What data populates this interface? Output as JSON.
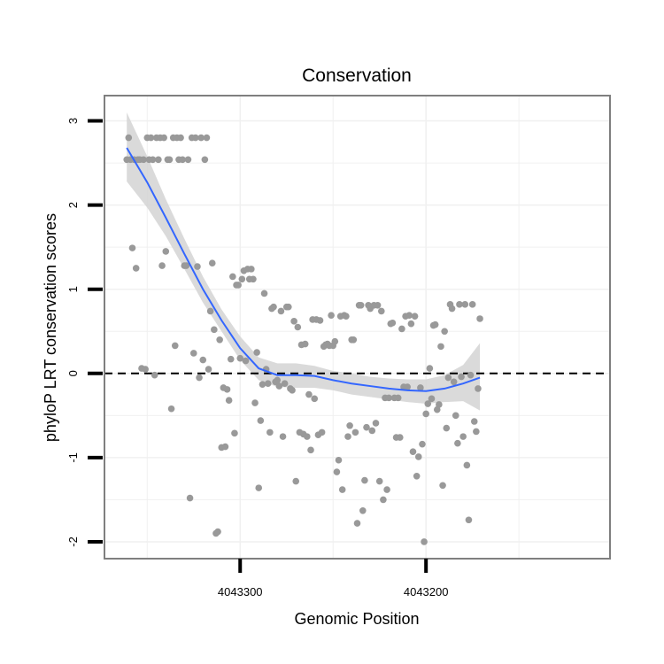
{
  "chart_data": {
    "type": "scatter",
    "title": "Conservation",
    "xlabel": "Genomic Position",
    "ylabel": "phyloP LRT conservation scores",
    "x_reversed": true,
    "xlim": [
      4043373,
      4043101
    ],
    "ylim": [
      -2.2,
      3.3
    ],
    "x_ticks": [
      4043300,
      4043200
    ],
    "x_tick_labels": [
      "4043300",
      "4043200"
    ],
    "y_ticks": [
      -2,
      -1,
      0,
      1,
      2,
      3
    ],
    "y_tick_labels": [
      "-2",
      "-1",
      "0",
      "1",
      "2",
      "3"
    ],
    "reference_line": {
      "y": 0,
      "style": "dashed"
    },
    "grid": true,
    "legend": "none",
    "colors": {
      "points": "#999999",
      "smooth": "#3366FF",
      "band": "#d3d3d3",
      "frame": "#7f7f7f",
      "grid": "#f0f0f0"
    },
    "series": [
      {
        "type": "points",
        "points": [
          [
            4043361,
            2.54
          ],
          [
            4043360,
            2.8
          ],
          [
            4043359,
            2.54
          ],
          [
            4043358,
            1.49
          ],
          [
            4043357,
            2.54
          ],
          [
            4043356,
            1.25
          ],
          [
            4043355,
            2.54
          ],
          [
            4043354,
            2.54
          ],
          [
            4043353,
            0.06
          ],
          [
            4043352,
            2.54
          ],
          [
            4043351,
            0.05
          ],
          [
            4043350,
            2.8
          ],
          [
            4043349,
            2.54
          ],
          [
            4043348,
            2.8
          ],
          [
            4043347,
            2.54
          ],
          [
            4043346,
            -0.02
          ],
          [
            4043345,
            2.8
          ],
          [
            4043344,
            2.54
          ],
          [
            4043343,
            2.8
          ],
          [
            4043342,
            1.28
          ],
          [
            4043341,
            2.8
          ],
          [
            4043340,
            1.45
          ],
          [
            4043339,
            2.54
          ],
          [
            4043338,
            2.54
          ],
          [
            4043337,
            -0.42
          ],
          [
            4043336,
            2.8
          ],
          [
            4043335,
            0.33
          ],
          [
            4043334,
            2.8
          ],
          [
            4043333,
            2.54
          ],
          [
            4043332,
            2.8
          ],
          [
            4043331,
            2.54
          ],
          [
            4043330,
            1.28
          ],
          [
            4043329,
            1.28
          ],
          [
            4043328,
            2.54
          ],
          [
            4043327,
            -1.48
          ],
          [
            4043326,
            2.8
          ],
          [
            4043325,
            0.24
          ],
          [
            4043324,
            2.8
          ],
          [
            4043323,
            1.27
          ],
          [
            4043322,
            -0.05
          ],
          [
            4043321,
            2.8
          ],
          [
            4043320,
            0.16
          ],
          [
            4043319,
            2.54
          ],
          [
            4043318,
            2.8
          ],
          [
            4043317,
            0.05
          ],
          [
            4043316,
            0.74
          ],
          [
            4043315,
            1.31
          ],
          [
            4043314,
            0.52
          ],
          [
            4043313,
            -1.9
          ],
          [
            4043312,
            -1.88
          ],
          [
            4043311,
            0.4
          ],
          [
            4043310,
            -0.88
          ],
          [
            4043309,
            -0.17
          ],
          [
            4043308,
            -0.87
          ],
          [
            4043307,
            -0.19
          ],
          [
            4043306,
            -0.32
          ],
          [
            4043305,
            0.17
          ],
          [
            4043304,
            1.15
          ],
          [
            4043303,
            -0.71
          ],
          [
            4043302,
            1.05
          ],
          [
            4043301,
            1.05
          ],
          [
            4043300,
            0.18
          ],
          [
            4043299,
            1.12
          ],
          [
            4043298,
            1.22
          ],
          [
            4043297,
            0.15
          ],
          [
            4043296,
            1.24
          ],
          [
            4043295,
            1.12
          ],
          [
            4043294,
            1.24
          ],
          [
            4043293,
            1.12
          ],
          [
            4043292,
            -0.35
          ],
          [
            4043291,
            0.25
          ],
          [
            4043290,
            -1.36
          ],
          [
            4043289,
            -0.56
          ],
          [
            4043288,
            -0.13
          ],
          [
            4043287,
            0.95
          ],
          [
            4043286,
            0.05
          ],
          [
            4043285,
            -0.12
          ],
          [
            4043284,
            -0.7
          ],
          [
            4043283,
            0.77
          ],
          [
            4043282,
            0.79
          ],
          [
            4043281,
            -0.1
          ],
          [
            4043280,
            -0.08
          ],
          [
            4043279,
            -0.15
          ],
          [
            4043278,
            0.74
          ],
          [
            4043277,
            -0.75
          ],
          [
            4043276,
            -0.12
          ],
          [
            4043275,
            0.79
          ],
          [
            4043274,
            0.79
          ],
          [
            4043273,
            -0.18
          ],
          [
            4043272,
            -0.2
          ],
          [
            4043271,
            0.62
          ],
          [
            4043270,
            -1.28
          ],
          [
            4043269,
            0.55
          ],
          [
            4043268,
            -0.7
          ],
          [
            4043267,
            0.34
          ],
          [
            4043266,
            -0.72
          ],
          [
            4043265,
            0.35
          ],
          [
            4043264,
            -0.75
          ],
          [
            4043263,
            -0.25
          ],
          [
            4043262,
            -0.91
          ],
          [
            4043261,
            0.64
          ],
          [
            4043260,
            -0.3
          ],
          [
            4043259,
            0.64
          ],
          [
            4043258,
            -0.73
          ],
          [
            4043257,
            0.63
          ],
          [
            4043256,
            -0.7
          ],
          [
            4043255,
            0.32
          ],
          [
            4043254,
            0.34
          ],
          [
            4043253,
            0.35
          ],
          [
            4043252,
            0.33
          ],
          [
            4043251,
            0.69
          ],
          [
            4043250,
            0.33
          ],
          [
            4043249,
            0.38
          ],
          [
            4043248,
            -1.17
          ],
          [
            4043247,
            -1.03
          ],
          [
            4043246,
            0.68
          ],
          [
            4043245,
            -1.38
          ],
          [
            4043244,
            0.69
          ],
          [
            4043243,
            0.68
          ],
          [
            4043242,
            -0.75
          ],
          [
            4043241,
            -0.62
          ],
          [
            4043240,
            0.4
          ],
          [
            4043239,
            0.4
          ],
          [
            4043238,
            -0.7
          ],
          [
            4043237,
            -1.78
          ],
          [
            4043236,
            0.81
          ],
          [
            4043235,
            0.81
          ],
          [
            4043234,
            -1.63
          ],
          [
            4043233,
            -1.27
          ],
          [
            4043232,
            -0.64
          ],
          [
            4043231,
            0.81
          ],
          [
            4043230,
            0.77
          ],
          [
            4043229,
            -0.68
          ],
          [
            4043228,
            0.81
          ],
          [
            4043227,
            -0.59
          ],
          [
            4043226,
            0.81
          ],
          [
            4043225,
            -1.28
          ],
          [
            4043224,
            0.74
          ],
          [
            4043223,
            -1.5
          ],
          [
            4043222,
            -0.29
          ],
          [
            4043221,
            -1.38
          ],
          [
            4043220,
            -0.29
          ],
          [
            4043219,
            0.59
          ],
          [
            4043218,
            0.6
          ],
          [
            4043217,
            -0.29
          ],
          [
            4043216,
            -0.76
          ],
          [
            4043215,
            -0.29
          ],
          [
            4043214,
            -0.76
          ],
          [
            4043213,
            0.53
          ],
          [
            4043212,
            -0.16
          ],
          [
            4043211,
            0.68
          ],
          [
            4043210,
            -0.16
          ],
          [
            4043209,
            0.69
          ],
          [
            4043208,
            0.59
          ],
          [
            4043207,
            -0.93
          ],
          [
            4043206,
            0.68
          ],
          [
            4043205,
            -1.22
          ],
          [
            4043204,
            -0.99
          ],
          [
            4043203,
            -0.17
          ],
          [
            4043202,
            -0.84
          ],
          [
            4043201,
            -2.0
          ],
          [
            4043200,
            -0.48
          ],
          [
            4043199,
            -0.36
          ],
          [
            4043198,
            0.06
          ],
          [
            4043197,
            -0.3
          ],
          [
            4043196,
            0.57
          ],
          [
            4043195,
            0.58
          ],
          [
            4043194,
            -0.43
          ],
          [
            4043193,
            -0.37
          ],
          [
            4043192,
            0.32
          ],
          [
            4043191,
            -1.33
          ],
          [
            4043190,
            0.5
          ],
          [
            4043189,
            -0.65
          ],
          [
            4043188,
            -0.05
          ],
          [
            4043187,
            0.82
          ],
          [
            4043186,
            0.77
          ],
          [
            4043185,
            -0.1
          ],
          [
            4043184,
            -0.5
          ],
          [
            4043183,
            -0.83
          ],
          [
            4043182,
            0.82
          ],
          [
            4043181,
            -0.04
          ],
          [
            4043180,
            -0.75
          ],
          [
            4043179,
            0.82
          ],
          [
            4043178,
            -1.09
          ],
          [
            4043177,
            -1.74
          ],
          [
            4043176,
            -0.02
          ],
          [
            4043175,
            0.82
          ],
          [
            4043174,
            -0.57
          ],
          [
            4043173,
            -0.69
          ],
          [
            4043172,
            -0.18
          ],
          [
            4043171,
            0.65
          ]
        ]
      },
      {
        "type": "smooth",
        "line": [
          [
            4043361,
            2.68
          ],
          [
            4043350,
            2.27
          ],
          [
            4043340,
            1.85
          ],
          [
            4043330,
            1.42
          ],
          [
            4043320,
            1.0
          ],
          [
            4043310,
            0.63
          ],
          [
            4043300,
            0.3
          ],
          [
            4043290,
            0.06
          ],
          [
            4043280,
            -0.02
          ],
          [
            4043270,
            -0.02
          ],
          [
            4043260,
            -0.03
          ],
          [
            4043250,
            -0.08
          ],
          [
            4043240,
            -0.12
          ],
          [
            4043230,
            -0.15
          ],
          [
            4043220,
            -0.18
          ],
          [
            4043210,
            -0.2
          ],
          [
            4043200,
            -0.21
          ],
          [
            4043190,
            -0.18
          ],
          [
            4043180,
            -0.12
          ],
          [
            4043171,
            -0.05
          ]
        ],
        "band_upper": [
          [
            4043361,
            3.1
          ],
          [
            4043350,
            2.58
          ],
          [
            4043340,
            2.07
          ],
          [
            4043330,
            1.6
          ],
          [
            4043320,
            1.15
          ],
          [
            4043310,
            0.76
          ],
          [
            4043300,
            0.44
          ],
          [
            4043290,
            0.19
          ],
          [
            4043280,
            0.12
          ],
          [
            4043270,
            0.12
          ],
          [
            4043260,
            0.09
          ],
          [
            4043250,
            0.03
          ],
          [
            4043240,
            0.0
          ],
          [
            4043230,
            -0.04
          ],
          [
            4043220,
            -0.06
          ],
          [
            4043210,
            -0.07
          ],
          [
            4043200,
            -0.07
          ],
          [
            4043190,
            -0.02
          ],
          [
            4043180,
            0.1
          ],
          [
            4043171,
            0.36
          ]
        ],
        "band_lower": [
          [
            4043361,
            2.28
          ],
          [
            4043350,
            1.97
          ],
          [
            4043340,
            1.63
          ],
          [
            4043330,
            1.24
          ],
          [
            4043320,
            0.84
          ],
          [
            4043310,
            0.5
          ],
          [
            4043300,
            0.16
          ],
          [
            4043290,
            -0.08
          ],
          [
            4043280,
            -0.16
          ],
          [
            4043270,
            -0.17
          ],
          [
            4043260,
            -0.17
          ],
          [
            4043250,
            -0.2
          ],
          [
            4043240,
            -0.25
          ],
          [
            4043230,
            -0.28
          ],
          [
            4043220,
            -0.31
          ],
          [
            4043210,
            -0.34
          ],
          [
            4043200,
            -0.36
          ],
          [
            4043190,
            -0.34
          ],
          [
            4043180,
            -0.33
          ],
          [
            4043171,
            -0.44
          ]
        ]
      }
    ]
  }
}
